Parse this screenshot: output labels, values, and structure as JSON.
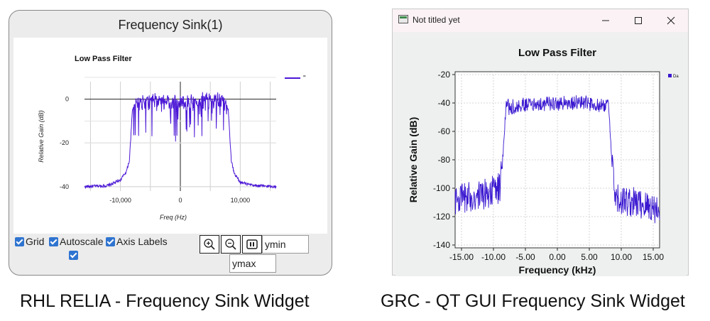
{
  "relia": {
    "window_title": "Frequency Sink(1)",
    "chart_title": "Low Pass Filter",
    "legend_label": "\"",
    "ylabel": "Relative Gain (dB)",
    "xlabel": "Freq (Hz)",
    "yticks": [
      "0",
      "-20",
      "-40"
    ],
    "xticks": [
      "-10,000",
      "0",
      "10,000"
    ],
    "checkboxes": {
      "grid": "Grid",
      "autoscale": "Autoscale",
      "axis_labels": "Axis Labels"
    },
    "ymin_value": "ymin",
    "ymax_value": "ymax",
    "icons": [
      "zoom-in-icon",
      "zoom-out-icon",
      "pause-icon"
    ],
    "line_color": "#4b17d6"
  },
  "grc": {
    "window_title": "Not titled yet",
    "chart_title": "Low Pass Filter",
    "legend_label": "Da",
    "ylabel": "Relative Gain (dB)",
    "xlabel": "Frequency (kHz)",
    "yticks": [
      "-20",
      "-40",
      "-60",
      "-80",
      "-100",
      "-120",
      "-140"
    ],
    "xticks": [
      "-15.00",
      "-10.00",
      "-5.00",
      "0.00",
      "5.00",
      "10.00",
      "15.00"
    ],
    "line_color": "#3a18d0"
  },
  "captions": {
    "left": "RHL RELIA - Frequency Sink Widget",
    "right": "GRC - QT GUI Frequency Sink Widget"
  },
  "chart_data": [
    {
      "type": "line",
      "title": "Low Pass Filter",
      "xlabel": "Freq (Hz)",
      "ylabel": "Relative Gain (dB)",
      "xlim": [
        -16000,
        16000
      ],
      "ylim": [
        -42,
        8
      ],
      "grid": true,
      "x": [
        -16000,
        -12000,
        -10000,
        -9000,
        -8500,
        -8000,
        -7500,
        -5000,
        0,
        5000,
        7500,
        8000,
        8500,
        9000,
        10000,
        12000,
        16000
      ],
      "series": [
        {
          "values": [
            -40,
            -39.5,
            -37,
            -33,
            -28,
            -5,
            0,
            1,
            0,
            1,
            0,
            -5,
            -28,
            -34,
            -38,
            -39.5,
            -40
          ]
        }
      ]
    },
    {
      "type": "line",
      "title": "Low Pass Filter",
      "xlabel": "Frequency (kHz)",
      "ylabel": "Relative Gain (dB)",
      "xlim": [
        -16,
        16
      ],
      "ylim": [
        -142,
        -18
      ],
      "grid": true,
      "x": [
        -16,
        -12,
        -9,
        -8.5,
        -8,
        -5,
        0,
        5,
        8,
        8.5,
        9,
        12,
        16
      ],
      "series": [
        {
          "values": [
            -108,
            -105,
            -100,
            -75,
            -40,
            -37,
            -36,
            -36,
            -40,
            -80,
            -108,
            -110,
            -115
          ]
        }
      ]
    }
  ]
}
